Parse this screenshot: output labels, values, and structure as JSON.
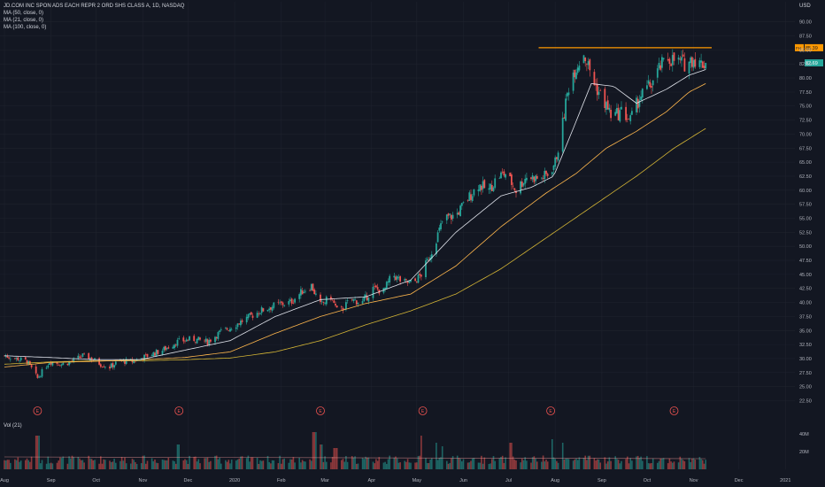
{
  "header": {
    "title": "JD.COM INC SPON ADS EACH REPR 2 ORD SHS CLASS A, 1D, NASDAQ",
    "indicators": [
      "MA (50, close, 0)",
      "MA (21, close, 0)",
      "MA (100, close, 0)"
    ],
    "volume_label": "Vol (21)"
  },
  "price_axis": {
    "currency": "USD",
    "ticks": [
      90.0,
      87.5,
      85.0,
      82.5,
      80.0,
      77.5,
      75.0,
      72.5,
      70.0,
      67.5,
      65.0,
      62.5,
      60.0,
      57.5,
      55.0,
      52.5,
      50.0,
      47.5,
      45.0,
      42.5,
      40.0,
      37.5,
      35.0,
      32.5,
      30.0,
      27.5,
      25.0,
      22.5
    ],
    "tick_labels": [
      "90.00",
      "87.50",
      "85.00",
      "82.50",
      "80.00",
      "77.50",
      "75.00",
      "72.50",
      "70.00",
      "67.50",
      "65.00",
      "62.50",
      "60.00",
      "57.50",
      "55.00",
      "52.50",
      "50.00",
      "47.50",
      "45.00",
      "42.50",
      "40.00",
      "37.50",
      "35.00",
      "32.50",
      "30.00",
      "27.50",
      "25.00",
      "22.50"
    ]
  },
  "volume_axis": {
    "ticks": [
      40,
      20
    ],
    "tick_labels": [
      "40M",
      "20M"
    ]
  },
  "time_axis": {
    "labels": [
      "Aug",
      "Sep",
      "Oct",
      "Nov",
      "Dec",
      "2020",
      "Feb",
      "Mar",
      "Apr",
      "May",
      "Jun",
      "Jul",
      "Aug",
      "Sep",
      "Oct",
      "Nov",
      "Dec",
      "2021"
    ],
    "label_day_index": [
      0,
      31,
      61,
      92,
      122,
      153,
      184,
      213,
      244,
      274,
      305,
      335,
      366,
      397,
      427,
      458,
      488,
      519
    ]
  },
  "badges": {
    "resistance": {
      "label": "FH",
      "value": "85.39",
      "color": "#ff9800"
    },
    "last": {
      "value": "82.69",
      "color": "#26a69a"
    }
  },
  "earnings": {
    "label": "E",
    "day_index": [
      22,
      116,
      210,
      278,
      363,
      445
    ]
  },
  "colors": {
    "up": "#26a69a",
    "down": "#ef5350",
    "ma50": "#ffb74d",
    "ma21": "#e0e3eb",
    "ma100": "#d4b535",
    "resistance": "#ff9800",
    "background": "#131722",
    "grid": "#1e222d"
  },
  "chart_data": {
    "type": "candlestick",
    "symbol": "JD",
    "timeframe": "1D",
    "exchange": "NASDAQ",
    "ylim": [
      21,
      92
    ],
    "resistance_level": 85.39,
    "resistance_day_range": [
      355,
      470
    ],
    "last_price": 82.69,
    "price_path": {
      "day_index": [
        0,
        8,
        15,
        22,
        30,
        38,
        45,
        52,
        58,
        64,
        70,
        76,
        85,
        95,
        105,
        115,
        125,
        135,
        145,
        150,
        160,
        170,
        180,
        190,
        198,
        204,
        210,
        217,
        222,
        230,
        238,
        245,
        252,
        258,
        265,
        272,
        277,
        283,
        292,
        300,
        308,
        315,
        322,
        328,
        333,
        340,
        347,
        356,
        362,
        366,
        370,
        373,
        376,
        380,
        385,
        392,
        398,
        404,
        410,
        416,
        422,
        430,
        436,
        441,
        447,
        452,
        458,
        462,
        466
      ],
      "close": [
        30.5,
        30,
        29.5,
        26.5,
        29.5,
        29,
        29.5,
        30.5,
        30,
        29,
        28.5,
        29.5,
        29.5,
        30.5,
        31.5,
        33,
        33.5,
        33,
        35,
        35.5,
        37,
        38.5,
        39.5,
        40,
        42,
        43,
        39.5,
        41,
        38,
        40.5,
        40,
        42.5,
        42,
        45,
        43.5,
        43.5,
        45,
        48.5,
        55,
        55.5,
        58.5,
        61,
        60,
        62.5,
        63,
        60,
        62.5,
        62,
        63,
        65,
        70,
        75.5,
        80,
        82,
        84.5,
        79,
        76,
        73,
        74,
        72.5,
        76.5,
        79,
        82,
        83.5,
        83,
        82.5,
        83.5,
        82.5,
        82.69
      ]
    },
    "ma21": {
      "day_index": [
        0,
        30,
        60,
        90,
        120,
        150,
        180,
        210,
        240,
        270,
        300,
        330,
        350,
        365,
        378,
        390,
        405,
        420,
        440,
        455,
        466
      ],
      "values": [
        30.5,
        30.2,
        29.8,
        29.8,
        31.5,
        33.2,
        37.5,
        40.5,
        41.0,
        44.0,
        52.5,
        59.0,
        60.5,
        62.5,
        71.0,
        79.0,
        78.5,
        75.5,
        78.0,
        80.5,
        81.5
      ]
    },
    "ma50": {
      "day_index": [
        0,
        30,
        60,
        90,
        120,
        150,
        180,
        210,
        240,
        270,
        300,
        330,
        360,
        380,
        400,
        420,
        440,
        455,
        466
      ],
      "values": [
        28.5,
        29.3,
        29.5,
        29.8,
        30.2,
        31.2,
        34.5,
        37.5,
        39.8,
        41.5,
        46.5,
        53.5,
        59.5,
        63.0,
        67.5,
        70.5,
        74.0,
        77.5,
        79.0
      ]
    },
    "ma100": {
      "day_index": [
        0,
        30,
        60,
        90,
        120,
        150,
        180,
        210,
        240,
        270,
        300,
        330,
        360,
        390,
        420,
        445,
        466
      ],
      "values": [
        29.0,
        29.4,
        29.6,
        29.6,
        29.8,
        30.1,
        31.2,
        33.2,
        36.0,
        38.5,
        41.5,
        46.0,
        51.5,
        57.0,
        62.5,
        67.5,
        71.0
      ]
    },
    "volume_avg_millions": 12,
    "volume_spike_day_index": [
      22,
      116,
      206,
      210,
      220,
      278,
      286,
      292,
      336,
      363,
      370
    ],
    "volume_spike_millions": [
      38,
      28,
      42,
      28,
      24,
      38,
      30,
      26,
      30,
      34,
      30
    ]
  }
}
